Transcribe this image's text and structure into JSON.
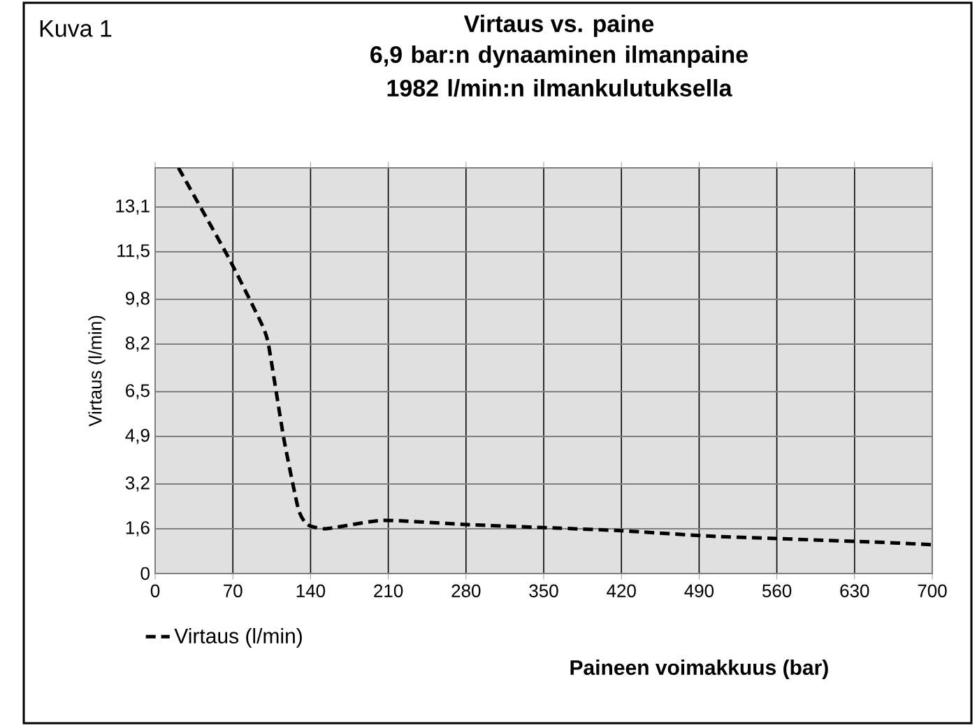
{
  "chart_data": {
    "type": "line",
    "title": "Virtaus vs. paine",
    "subtitle": "6,9 bar:n dynaaminen ilmanpaine 1982 l/min:n ilmankulutuksella",
    "annotations": [
      "Kuva 1"
    ],
    "xlabel": "Paineen voimakkuus (bar)",
    "ylabel": "Virtaus (l/min)",
    "xlim": [
      0,
      700
    ],
    "xticks": [
      0,
      70,
      140,
      210,
      280,
      350,
      420,
      490,
      560,
      630,
      700
    ],
    "ylim": [
      0,
      14.5
    ],
    "yticks": [
      0,
      {
        "value": 1.6,
        "label": "1,6"
      },
      {
        "value": 3.2,
        "label": "3,2"
      },
      {
        "value": 4.9,
        "label": "4,9"
      },
      {
        "value": 6.5,
        "label": "6,5"
      },
      {
        "value": 8.2,
        "label": "8,2"
      },
      {
        "value": 9.8,
        "label": "9,8"
      },
      {
        "value": 11.5,
        "label": "11,5"
      },
      {
        "value": 13.1,
        "label": "13,1"
      }
    ],
    "grid": true,
    "legend": "bottom left",
    "line_style": "dashed",
    "series": [
      {
        "name": "Virtaus (l/min)",
        "color": "#000000",
        "x": [
          21,
          66,
          95,
          102,
          116,
          129,
          137,
          154,
          205,
          280,
          358,
          420,
          503,
          645,
          700
        ],
        "values": [
          14.5,
          11.3,
          9.0,
          8.2,
          4.8,
          2.3,
          1.75,
          1.6,
          1.9,
          1.75,
          1.63,
          1.53,
          1.33,
          1.13,
          1.03
        ]
      }
    ]
  }
}
